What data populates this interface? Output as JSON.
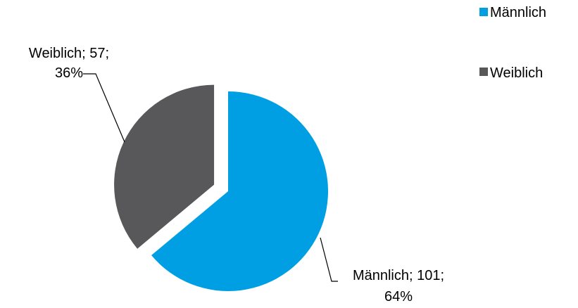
{
  "chart_data": {
    "type": "pie",
    "categories": [
      "Männlich",
      "Weiblich"
    ],
    "values": [
      101,
      57
    ],
    "percentages": [
      "64%",
      "36%"
    ],
    "colors": {
      "Männlich": "#009FE3",
      "Weiblich": "#58585A"
    },
    "exploded": "Weiblich",
    "legend_position": "top-right",
    "title": ""
  },
  "legend": [
    {
      "label": "Männlich",
      "color": "#009FE3"
    },
    {
      "label": "Weiblich",
      "color": "#58585A"
    }
  ],
  "data_labels": [
    {
      "line1": "Weiblich; 57;",
      "line2": "36%"
    },
    {
      "line1": "Männlich; 101;",
      "line2": "64%"
    }
  ]
}
